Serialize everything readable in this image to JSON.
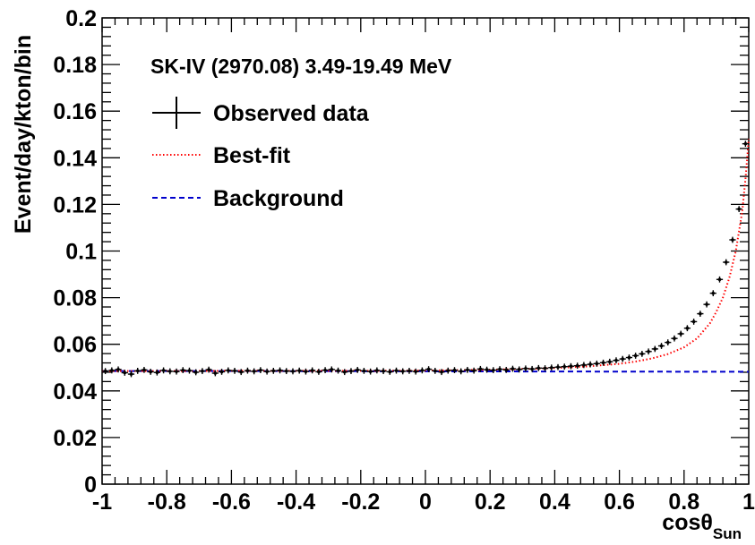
{
  "chart_data": {
    "type": "scatter",
    "title": "",
    "header": "SK-IV (2970.08) 3.49-19.49 MeV",
    "xlabel": {
      "main": "cosθ",
      "sub": "Sun"
    },
    "ylabel": "Event/day/kton/bin",
    "xlim": [
      -1,
      1
    ],
    "ylim": [
      0,
      0.2
    ],
    "xticks": [
      "-1",
      "-0.8",
      "-0.6",
      "-0.4",
      "-0.2",
      "0",
      "0.2",
      "0.4",
      "0.6",
      "0.8",
      "1"
    ],
    "yticks": [
      "0",
      "0.02",
      "0.04",
      "0.06",
      "0.08",
      "0.1",
      "0.12",
      "0.14",
      "0.16",
      "0.18",
      "0.2"
    ],
    "grid": false,
    "legend_position": "top-left",
    "legend": [
      {
        "label": "Observed data",
        "style": "error-cross",
        "color": "#000000"
      },
      {
        "label": "Best-fit",
        "style": "dotted",
        "color": "#ff0000"
      },
      {
        "label": "Background",
        "style": "dashed",
        "color": "#0000cc"
      }
    ],
    "series": [
      {
        "name": "Observed data",
        "kind": "points-with-errors",
        "x_bin_centers_from": -0.99,
        "x_bin_width": 0.02,
        "n_bins": 100,
        "values": [
          0.0485,
          0.0488,
          0.0492,
          0.0478,
          0.0472,
          0.0486,
          0.049,
          0.0482,
          0.0479,
          0.0488,
          0.0484,
          0.0483,
          0.0489,
          0.0487,
          0.048,
          0.0485,
          0.0491,
          0.0476,
          0.0482,
          0.0488,
          0.0486,
          0.0481,
          0.0487,
          0.0484,
          0.0489,
          0.0483,
          0.0486,
          0.0488,
          0.0485,
          0.0484,
          0.0487,
          0.0483,
          0.0488,
          0.0482,
          0.0489,
          0.0492,
          0.0487,
          0.0481,
          0.0485,
          0.049,
          0.0486,
          0.0483,
          0.0488,
          0.0485,
          0.0482,
          0.0487,
          0.0484,
          0.0486,
          0.0483,
          0.0488,
          0.0493,
          0.0486,
          0.0481,
          0.0487,
          0.0489,
          0.0484,
          0.049,
          0.0487,
          0.0494,
          0.0491,
          0.0489,
          0.0493,
          0.049,
          0.0495,
          0.0492,
          0.0496,
          0.0494,
          0.0498,
          0.0497,
          0.05,
          0.0502,
          0.0504,
          0.0506,
          0.0508,
          0.0511,
          0.0514,
          0.0517,
          0.0521,
          0.0525,
          0.0531,
          0.0537,
          0.0543,
          0.0551,
          0.0559,
          0.0569,
          0.058,
          0.0593,
          0.0608,
          0.0625,
          0.0645,
          0.0669,
          0.0697,
          0.0731,
          0.0771,
          0.0819,
          0.0878,
          0.0952,
          0.1048,
          0.118,
          0.146
        ],
        "error": 0.0013
      },
      {
        "name": "Best-fit",
        "kind": "line",
        "x": [
          -1.0,
          -0.8,
          -0.6,
          -0.4,
          -0.2,
          0.0,
          0.1,
          0.2,
          0.3,
          0.4,
          0.5,
          0.6,
          0.65,
          0.7,
          0.75,
          0.8,
          0.84,
          0.88,
          0.9,
          0.92,
          0.94,
          0.96,
          0.98,
          0.99,
          1.0
        ],
        "values": [
          0.0485,
          0.0485,
          0.0486,
          0.0486,
          0.0486,
          0.0487,
          0.0489,
          0.0491,
          0.0494,
          0.0498,
          0.0505,
          0.0516,
          0.0526,
          0.0539,
          0.0558,
          0.0587,
          0.0625,
          0.069,
          0.074,
          0.08,
          0.0885,
          0.1,
          0.117,
          0.131,
          0.148
        ]
      },
      {
        "name": "Background",
        "kind": "line",
        "x": [
          -1.0,
          -0.5,
          0.0,
          0.5,
          1.0
        ],
        "values": [
          0.0485,
          0.0485,
          0.0484,
          0.0483,
          0.0482
        ]
      }
    ]
  }
}
